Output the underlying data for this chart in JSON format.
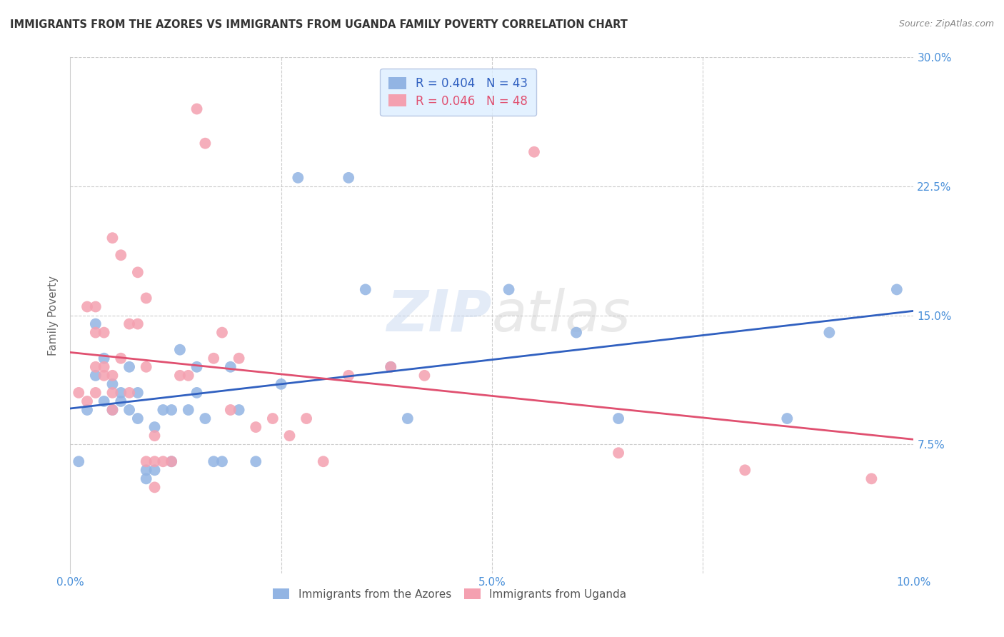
{
  "title": "IMMIGRANTS FROM THE AZORES VS IMMIGRANTS FROM UGANDA FAMILY POVERTY CORRELATION CHART",
  "source": "Source: ZipAtlas.com",
  "xlabel": "",
  "ylabel": "Family Poverty",
  "xlim": [
    0.0,
    0.1
  ],
  "ylim": [
    0.0,
    0.3
  ],
  "xticks": [
    0.0,
    0.025,
    0.05,
    0.075,
    0.1
  ],
  "xticklabels": [
    "0.0%",
    "",
    "5.0%",
    "",
    "10.0%"
  ],
  "yticks": [
    0.0,
    0.075,
    0.15,
    0.225,
    0.3
  ],
  "yticklabels": [
    "",
    "7.5%",
    "15.0%",
    "22.5%",
    "30.0%"
  ],
  "azores_color": "#92b4e3",
  "uganda_color": "#f4a0b0",
  "azores_line_color": "#3060c0",
  "uganda_line_color": "#e05070",
  "legend_box_color": "#ddeeff",
  "legend_border_color": "#aabbdd",
  "azores_R": 0.404,
  "azores_N": 43,
  "uganda_R": 0.046,
  "uganda_N": 48,
  "watermark_zip": "ZIP",
  "watermark_atlas": "atlas",
  "azores_points": [
    [
      0.001,
      0.065
    ],
    [
      0.002,
      0.095
    ],
    [
      0.003,
      0.115
    ],
    [
      0.003,
      0.145
    ],
    [
      0.004,
      0.1
    ],
    [
      0.004,
      0.125
    ],
    [
      0.005,
      0.11
    ],
    [
      0.005,
      0.095
    ],
    [
      0.006,
      0.105
    ],
    [
      0.006,
      0.1
    ],
    [
      0.007,
      0.12
    ],
    [
      0.007,
      0.095
    ],
    [
      0.008,
      0.09
    ],
    [
      0.008,
      0.105
    ],
    [
      0.009,
      0.06
    ],
    [
      0.009,
      0.055
    ],
    [
      0.01,
      0.085
    ],
    [
      0.01,
      0.06
    ],
    [
      0.011,
      0.095
    ],
    [
      0.012,
      0.095
    ],
    [
      0.012,
      0.065
    ],
    [
      0.013,
      0.13
    ],
    [
      0.014,
      0.095
    ],
    [
      0.015,
      0.12
    ],
    [
      0.015,
      0.105
    ],
    [
      0.016,
      0.09
    ],
    [
      0.017,
      0.065
    ],
    [
      0.018,
      0.065
    ],
    [
      0.019,
      0.12
    ],
    [
      0.02,
      0.095
    ],
    [
      0.022,
      0.065
    ],
    [
      0.025,
      0.11
    ],
    [
      0.027,
      0.23
    ],
    [
      0.033,
      0.23
    ],
    [
      0.035,
      0.165
    ],
    [
      0.038,
      0.12
    ],
    [
      0.04,
      0.09
    ],
    [
      0.052,
      0.165
    ],
    [
      0.06,
      0.14
    ],
    [
      0.065,
      0.09
    ],
    [
      0.085,
      0.09
    ],
    [
      0.09,
      0.14
    ],
    [
      0.098,
      0.165
    ]
  ],
  "uganda_points": [
    [
      0.001,
      0.105
    ],
    [
      0.002,
      0.1
    ],
    [
      0.002,
      0.155
    ],
    [
      0.003,
      0.105
    ],
    [
      0.003,
      0.14
    ],
    [
      0.003,
      0.155
    ],
    [
      0.004,
      0.115
    ],
    [
      0.004,
      0.14
    ],
    [
      0.004,
      0.12
    ],
    [
      0.005,
      0.105
    ],
    [
      0.005,
      0.115
    ],
    [
      0.005,
      0.195
    ],
    [
      0.006,
      0.125
    ],
    [
      0.006,
      0.185
    ],
    [
      0.007,
      0.105
    ],
    [
      0.007,
      0.145
    ],
    [
      0.008,
      0.145
    ],
    [
      0.008,
      0.175
    ],
    [
      0.009,
      0.12
    ],
    [
      0.009,
      0.065
    ],
    [
      0.01,
      0.05
    ],
    [
      0.01,
      0.065
    ],
    [
      0.011,
      0.065
    ],
    [
      0.012,
      0.065
    ],
    [
      0.013,
      0.115
    ],
    [
      0.014,
      0.115
    ],
    [
      0.015,
      0.27
    ],
    [
      0.016,
      0.25
    ],
    [
      0.017,
      0.125
    ],
    [
      0.018,
      0.14
    ],
    [
      0.019,
      0.095
    ],
    [
      0.02,
      0.125
    ],
    [
      0.022,
      0.085
    ],
    [
      0.024,
      0.09
    ],
    [
      0.026,
      0.08
    ],
    [
      0.028,
      0.09
    ],
    [
      0.03,
      0.065
    ],
    [
      0.033,
      0.115
    ],
    [
      0.038,
      0.12
    ],
    [
      0.042,
      0.115
    ],
    [
      0.055,
      0.245
    ],
    [
      0.065,
      0.07
    ],
    [
      0.08,
      0.06
    ],
    [
      0.095,
      0.055
    ],
    [
      0.003,
      0.12
    ],
    [
      0.005,
      0.095
    ],
    [
      0.009,
      0.16
    ],
    [
      0.01,
      0.08
    ]
  ]
}
